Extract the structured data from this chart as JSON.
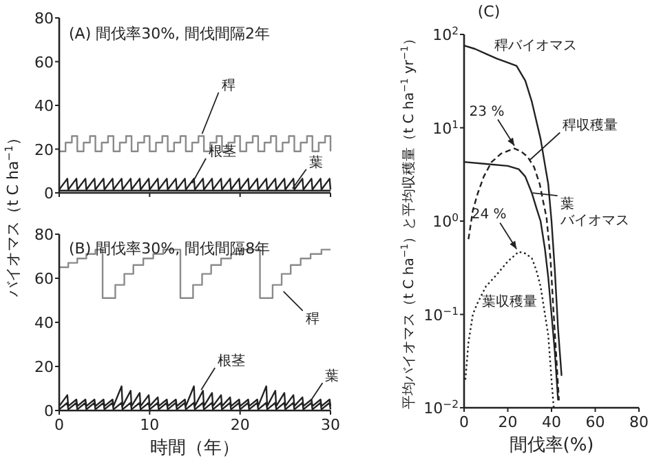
{
  "chart_data": [
    {
      "type": "line",
      "title": "(A) 間伐率30%, 間伐間隔2年",
      "ylabel": "バイオマス（t C ha$^{−1}$）",
      "xlim": [
        0,
        30
      ],
      "ylim": [
        0,
        80
      ],
      "xticks": [
        0,
        10,
        20,
        30
      ],
      "yticks": [
        0,
        20,
        40,
        60,
        80
      ],
      "tick_labels": "y",
      "series": [
        {
          "type": "step",
          "color": "#8a8a8a",
          "line_style": "solid",
          "x": [
            0,
            0.7,
            1.4,
            2,
            2.7,
            3.4,
            4,
            4.7,
            5.4,
            6,
            6.7,
            7.4,
            8,
            8.7,
            9.4,
            10,
            10.7,
            11.4,
            12,
            12.7,
            13.4,
            14,
            14.7,
            15.4,
            16,
            16.7,
            17.4,
            18,
            18.7,
            19.4,
            20,
            20.7,
            21.4,
            22,
            22.7,
            23.4,
            24,
            24.7,
            25.4,
            26,
            26.7,
            27.4,
            28,
            28.7,
            29.4,
            30
          ],
          "values": [
            19,
            23,
            26,
            19,
            23,
            26,
            19,
            23,
            26,
            19,
            23,
            26,
            19,
            23,
            26,
            19,
            23,
            26,
            19,
            23,
            26,
            19,
            23,
            26,
            19,
            23,
            26,
            19,
            23,
            26,
            19,
            23,
            26,
            19,
            23,
            26,
            19,
            23,
            26,
            19,
            23,
            26,
            19,
            23,
            26,
            19
          ]
        },
        {
          "type": "line",
          "color": "#222222",
          "line_style": "solid",
          "x": [
            0,
            0.9,
            1,
            1.9,
            2,
            2.9,
            3,
            3.9,
            4,
            4.9,
            5,
            5.9,
            6,
            6.9,
            7,
            7.9,
            8,
            8.9,
            9,
            9.9,
            10,
            10.9,
            11,
            11.9,
            12,
            12.9,
            13,
            13.9,
            14,
            14.9,
            15,
            15.9,
            16,
            16.9,
            17,
            17.9,
            18,
            18.9,
            19,
            19.9,
            20,
            20.9,
            21,
            21.9,
            22,
            22.9,
            23,
            23.9,
            24,
            24.9,
            25,
            25.9,
            26,
            26.9,
            27,
            27.9,
            28,
            28.9,
            29,
            29.9,
            30
          ],
          "values": [
            1.5,
            6.5,
            1.5,
            6.5,
            1.5,
            6.5,
            1.5,
            6.5,
            1.5,
            6.5,
            1.5,
            6.5,
            1.5,
            6.5,
            1.5,
            6.5,
            1.5,
            6.5,
            1.5,
            6.5,
            1.5,
            6.5,
            1.5,
            6.5,
            1.5,
            6.5,
            1.5,
            6.5,
            1.5,
            6.5,
            1.5,
            6.5,
            1.5,
            6.5,
            1.5,
            6.5,
            1.5,
            6.5,
            1.5,
            6.5,
            1.5,
            6.5,
            1.5,
            6.5,
            1.5,
            6.5,
            1.5,
            6.5,
            1.5,
            6.5,
            1.5,
            6.5,
            1.5,
            6.5,
            1.5,
            6.5,
            1.5,
            6.5,
            1.5,
            6.5,
            1.5
          ]
        },
        {
          "type": "line",
          "color": "#222222",
          "line_style": "solid",
          "x": [
            0,
            30
          ],
          "values": [
            1,
            1
          ]
        }
      ],
      "annotations": [
        {
          "text": "稈",
          "x": 15.8,
          "y": 27
        },
        {
          "text": "根茎",
          "x": 14.7,
          "y": 4.4
        },
        {
          "text": "葉",
          "x": 25.8,
          "y": 2
        }
      ]
    },
    {
      "type": "line",
      "title": "(B) 間伐率30%, 間伐間隔8年",
      "xlabel": "時間（年）",
      "xlim": [
        0,
        30
      ],
      "ylim": [
        0,
        80
      ],
      "xticks": [
        0,
        10,
        20,
        30
      ],
      "yticks": [
        0,
        20,
        40,
        60,
        80
      ],
      "series": [
        {
          "type": "step",
          "color": "#8a8a8a",
          "line_style": "solid",
          "x": [
            0,
            1,
            2,
            3,
            4,
            4.8,
            6.2,
            7.2,
            8.2,
            9.3,
            10.4,
            11.5,
            13.4,
            14.8,
            15.8,
            16.8,
            17.9,
            19,
            20.2,
            22.2,
            23.6,
            24.6,
            25.6,
            26.7,
            27.8,
            29,
            30
          ],
          "values": [
            65,
            67,
            69,
            71,
            73,
            51,
            57,
            62,
            66,
            69,
            71,
            73,
            51,
            57,
            62,
            66,
            69,
            71,
            73,
            51,
            57,
            62,
            66,
            69,
            71,
            73,
            73
          ]
        },
        {
          "type": "line",
          "color": "#222222",
          "line_style": "solid",
          "x": [
            0,
            0.9,
            1,
            1.9,
            2,
            2.9,
            3,
            3.9,
            4,
            4.9,
            5,
            5.9,
            6,
            6.9,
            7,
            7.9,
            8,
            8.9,
            9,
            9.9,
            10,
            10.9,
            11,
            11.9,
            12,
            12.9,
            13,
            13.9,
            14,
            14.9,
            15,
            15.9,
            16,
            16.9,
            17,
            17.9,
            18,
            18.9,
            19,
            19.9,
            20,
            20.9,
            21,
            21.9,
            22,
            22.9,
            23,
            23.9,
            24,
            24.9,
            25,
            25.9,
            26,
            26.9,
            27,
            27.9,
            28,
            28.9,
            29,
            29.9,
            30
          ],
          "values": [
            2,
            7,
            2,
            5,
            2,
            5,
            2,
            5,
            2,
            5,
            2,
            5,
            2,
            11,
            2,
            9,
            2,
            8,
            2,
            7,
            2,
            6,
            2,
            5,
            2,
            5,
            2,
            5,
            2,
            11,
            2,
            9,
            2,
            8,
            2,
            7,
            2,
            6,
            2,
            5,
            2,
            5,
            2,
            5,
            2,
            11,
            2,
            9,
            2,
            8,
            2,
            7,
            2,
            6,
            2,
            5,
            2,
            5,
            2,
            5,
            2
          ]
        },
        {
          "type": "line",
          "color": "#222222",
          "line_style": "solid",
          "x": [
            0,
            0.9,
            1,
            1.9,
            2,
            2.9,
            3,
            3.9,
            4,
            4.9,
            5,
            5.9,
            6,
            6.9,
            7,
            7.9,
            8,
            8.9,
            9,
            9.9,
            10,
            10.9,
            11,
            11.9,
            12,
            12.9,
            13,
            13.9,
            14,
            14.9,
            15,
            15.9,
            16,
            16.9,
            17,
            17.9,
            18,
            18.9,
            19,
            19.9,
            20,
            20.9,
            21,
            21.9,
            22,
            22.9,
            23,
            23.9,
            24,
            24.9,
            25,
            25.9,
            26,
            26.9,
            27,
            27.9,
            28,
            28.9,
            29,
            29.9,
            30
          ],
          "values": [
            0.5,
            3.5,
            0.5,
            3.5,
            0.5,
            3.5,
            0.5,
            3.5,
            0.5,
            3.5,
            0.5,
            3.5,
            0.5,
            3.5,
            0.5,
            3.5,
            0.5,
            3.5,
            0.5,
            3.5,
            0.5,
            3.5,
            0.5,
            3.5,
            0.5,
            3.5,
            0.5,
            3.5,
            0.5,
            3.5,
            0.5,
            3.5,
            0.5,
            3.5,
            0.5,
            3.5,
            0.5,
            3.5,
            0.5,
            3.5,
            0.5,
            3.5,
            0.5,
            3.5,
            0.5,
            3.5,
            0.5,
            3.5,
            0.5,
            3.5,
            0.5,
            3.5,
            0.5,
            3.5,
            0.5,
            3.5,
            0.5,
            3.5,
            0.5,
            3.5,
            0.5
          ]
        }
      ],
      "annotations": [
        {
          "text": "稈",
          "x": 24.8,
          "y": 54
        },
        {
          "text": "根茎",
          "x": 15.7,
          "y": 9.4
        },
        {
          "text": "葉",
          "x": 27.9,
          "y": 5
        }
      ]
    },
    {
      "type": "line",
      "title": "(C)",
      "xlabel": "間伐率(%)",
      "ylabel": "平均バイオマス（t C ha$^{−1}$）と平均収穫量（t C ha$^{−1}$ yr$^{−1}$）",
      "log": "y",
      "xlim": [
        0,
        80
      ],
      "ylim": [
        0.01,
        100
      ],
      "xticks": [
        0,
        20,
        40,
        60,
        80
      ],
      "yticks": [
        {
          "value": 0.01,
          "label": "10$^{−2}$"
        },
        {
          "value": 0.1,
          "label": "10$^{−1}$"
        },
        {
          "value": 1,
          "label": "10$^{0}$"
        },
        {
          "value": 10,
          "label": "10$^{1}$"
        },
        {
          "value": 100,
          "label": "10$^{2}$"
        }
      ],
      "series": [
        {
          "type": "line",
          "color": "#222222",
          "line_style": "solid",
          "x": [
            0,
            5,
            10,
            15,
            20,
            24,
            28,
            31,
            33,
            35,
            37,
            38.5,
            40,
            41.5,
            43,
            44.6
          ],
          "values": [
            76,
            70,
            62,
            55,
            50,
            46,
            32,
            19,
            12,
            7.6,
            4,
            2.5,
            1,
            0.3,
            0.07,
            0.022
          ]
        },
        {
          "type": "line",
          "color": "#222222",
          "line_style": "solid",
          "x": [
            0,
            10,
            20,
            25,
            28,
            31,
            33,
            35,
            37,
            38.5,
            40,
            41.5,
            43
          ],
          "values": [
            4.3,
            4.1,
            3.9,
            3.6,
            3,
            2,
            1.4,
            1,
            0.5,
            0.25,
            0.1,
            0.04,
            0.012
          ]
        },
        {
          "type": "line",
          "color": "#222222",
          "line_style": "dashed",
          "x": [
            2,
            4,
            6.3,
            9,
            12.6,
            17,
            23,
            26,
            29,
            32,
            34.6,
            36,
            37.7,
            39.5,
            41,
            43.4
          ],
          "values": [
            0.64,
            1.3,
            2,
            3,
            4.3,
            5.3,
            6,
            5.6,
            4.9,
            3.8,
            2.5,
            1.7,
            1.1,
            0.4,
            0.1,
            0.012
          ]
        },
        {
          "type": "line",
          "color": "#222222",
          "line_style": "dotted",
          "x": [
            0.6,
            2,
            4,
            6,
            10,
            14.5,
            20,
            25,
            28,
            31,
            33,
            35,
            37,
            38.5,
            40,
            41
          ],
          "values": [
            0.02,
            0.05,
            0.1,
            0.13,
            0.2,
            0.26,
            0.37,
            0.47,
            0.45,
            0.4,
            0.3,
            0.2,
            0.1,
            0.06,
            0.02,
            0.01
          ]
        }
      ],
      "annotations": [
        {
          "text": "稈バイオマス",
          "x": 14,
          "y": 54
        },
        {
          "text": "稈収穫量",
          "x": 30,
          "y": 4.5
        },
        {
          "text": "葉バイオマス",
          "x": 31.4,
          "y": 2
        },
        "葉収穫量",
        {
          "text": "23 %",
          "x": 23,
          "y": 6
        },
        {
          "text": "24 %",
          "x": 24,
          "y": 0.47
        }
      ]
    }
  ]
}
